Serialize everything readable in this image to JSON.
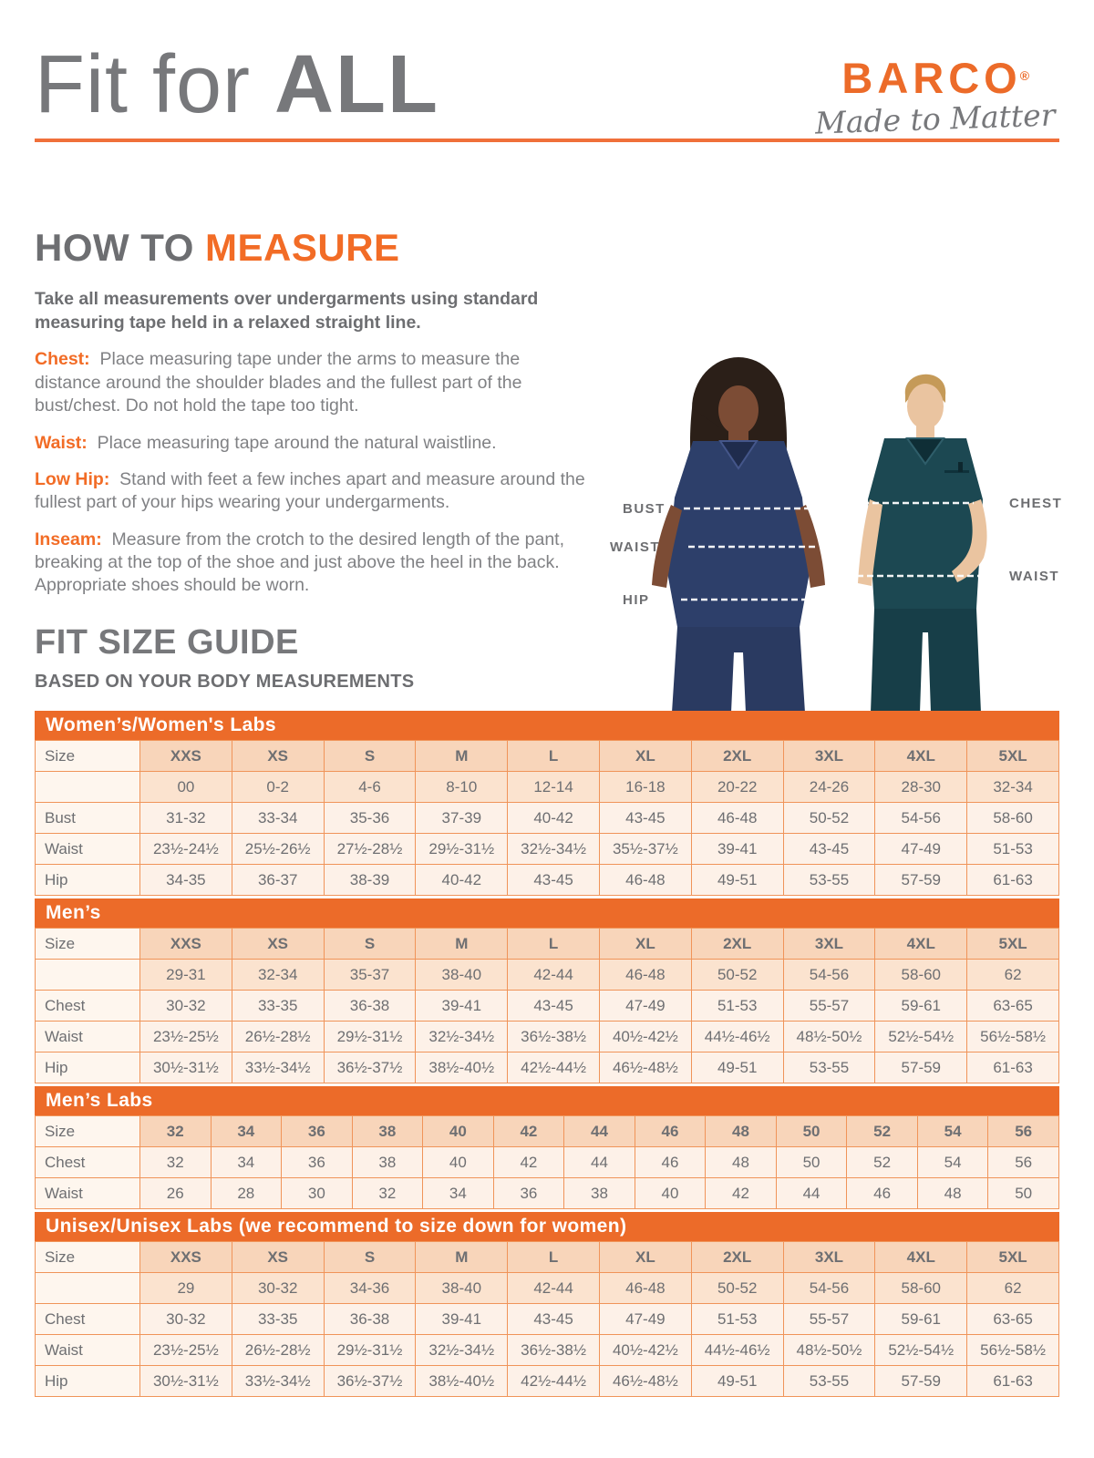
{
  "header": {
    "title_regular": "Fit for ",
    "title_bold": "ALL",
    "logo": {
      "brand": "BARCO",
      "registered": "®",
      "tagline": "Made to Matter"
    }
  },
  "how_to_measure": {
    "title_gray": "HOW TO ",
    "title_orange": "MEASURE",
    "intro": "Take all measurements over undergarments using standard measuring tape held in a relaxed straight line.",
    "steps": [
      {
        "label": "Chest:",
        "text": "Place measuring tape under the arms to measure the distance around the shoulder blades and the fullest part of the bust/chest. Do not hold the tape too tight."
      },
      {
        "label": "Waist:",
        "text": "Place measuring tape around the natural waistline."
      },
      {
        "label": "Low Hip:",
        "text": "Stand with feet a few inches apart and measure around the fullest part of your hips wearing your undergarments."
      },
      {
        "label": "Inseam:",
        "text": "Measure from the crotch to the desired length of the pant, breaking at the top of the shoe and just above the heel in the back. Appropriate shoes should be worn."
      }
    ]
  },
  "figure": {
    "labels_left": [
      "BUST",
      "WAIST",
      "HIP"
    ],
    "labels_right": [
      "CHEST",
      "WAIST"
    ]
  },
  "size_guide": {
    "title": "FIT SIZE GUIDE",
    "subtitle": "BASED ON YOUR BODY MEASUREMENTS",
    "tables": [
      {
        "title": "Women’s/Women's Labs",
        "size_label": "Size",
        "size_header": [
          "XXS",
          "XS",
          "S",
          "M",
          "L",
          "XL",
          "2XL",
          "3XL",
          "4XL",
          "5XL"
        ],
        "numeric_row": [
          "00",
          "0-2",
          "4-6",
          "8-10",
          "12-14",
          "16-18",
          "20-22",
          "24-26",
          "28-30",
          "32-34"
        ],
        "rows": [
          {
            "label": "Bust",
            "values": [
              "31-32",
              "33-34",
              "35-36",
              "37-39",
              "40-42",
              "43-45",
              "46-48",
              "50-52",
              "54-56",
              "58-60"
            ]
          },
          {
            "label": "Waist",
            "values": [
              "23½-24½",
              "25½-26½",
              "27½-28½",
              "29½-31½",
              "32½-34½",
              "35½-37½",
              "39-41",
              "43-45",
              "47-49",
              "51-53"
            ]
          },
          {
            "label": "Hip",
            "values": [
              "34-35",
              "36-37",
              "38-39",
              "40-42",
              "43-45",
              "46-48",
              "49-51",
              "53-55",
              "57-59",
              "61-63"
            ]
          }
        ]
      },
      {
        "title": "Men’s",
        "size_label": "Size",
        "size_header": [
          "XXS",
          "XS",
          "S",
          "M",
          "L",
          "XL",
          "2XL",
          "3XL",
          "4XL",
          "5XL"
        ],
        "numeric_row": [
          "29-31",
          "32-34",
          "35-37",
          "38-40",
          "42-44",
          "46-48",
          "50-52",
          "54-56",
          "58-60",
          "62"
        ],
        "rows": [
          {
            "label": "Chest",
            "values": [
              "30-32",
              "33-35",
              "36-38",
              "39-41",
              "43-45",
              "47-49",
              "51-53",
              "55-57",
              "59-61",
              "63-65"
            ]
          },
          {
            "label": "Waist",
            "values": [
              "23½-25½",
              "26½-28½",
              "29½-31½",
              "32½-34½",
              "36½-38½",
              "40½-42½",
              "44½-46½",
              "48½-50½",
              "52½-54½",
              "56½-58½"
            ]
          },
          {
            "label": "Hip",
            "values": [
              "30½-31½",
              "33½-34½",
              "36½-37½",
              "38½-40½",
              "42½-44½",
              "46½-48½",
              "49-51",
              "53-55",
              "57-59",
              "61-63"
            ]
          }
        ]
      },
      {
        "title": "Men’s Labs",
        "size_label": "Size",
        "size_header": [
          "32",
          "34",
          "36",
          "38",
          "40",
          "42",
          "44",
          "46",
          "48",
          "50",
          "52",
          "54",
          "56"
        ],
        "rows": [
          {
            "label": "Chest",
            "values": [
              "32",
              "34",
              "36",
              "38",
              "40",
              "42",
              "44",
              "46",
              "48",
              "50",
              "52",
              "54",
              "56"
            ]
          },
          {
            "label": "Waist",
            "values": [
              "26",
              "28",
              "30",
              "32",
              "34",
              "36",
              "38",
              "40",
              "42",
              "44",
              "46",
              "48",
              "50"
            ]
          }
        ]
      },
      {
        "title": "Unisex/Unisex Labs (we recommend to size down for women)",
        "size_label": "Size",
        "size_header": [
          "XXS",
          "XS",
          "S",
          "M",
          "L",
          "XL",
          "2XL",
          "3XL",
          "4XL",
          "5XL"
        ],
        "numeric_row": [
          "29",
          "30-32",
          "34-36",
          "38-40",
          "42-44",
          "46-48",
          "50-52",
          "54-56",
          "58-60",
          "62"
        ],
        "rows": [
          {
            "label": "Chest",
            "values": [
              "30-32",
              "33-35",
              "36-38",
              "39-41",
              "43-45",
              "47-49",
              "51-53",
              "55-57",
              "59-61",
              "63-65"
            ]
          },
          {
            "label": "Waist",
            "values": [
              "23½-25½",
              "26½-28½",
              "29½-31½",
              "32½-34½",
              "36½-38½",
              "40½-42½",
              "44½-46½",
              "48½-50½",
              "52½-54½",
              "56½-58½"
            ]
          },
          {
            "label": "Hip",
            "values": [
              "30½-31½",
              "33½-34½",
              "36½-37½",
              "38½-40½",
              "42½-44½",
              "46½-48½",
              "49-51",
              "53-55",
              "57-59",
              "61-63"
            ]
          }
        ]
      }
    ]
  },
  "colors": {
    "brand_orange": "#ec6b29",
    "heading_gray": "#77787b",
    "body_gray": "#808184",
    "table_header_peach": "#f8d5ba",
    "table_numeric_peach": "#fbe3cf",
    "table_row_light": "#fdf1e8",
    "table_border": "#f09459",
    "scrub_navy": "#2d3f6a",
    "scrub_teal": "#1c4852"
  }
}
